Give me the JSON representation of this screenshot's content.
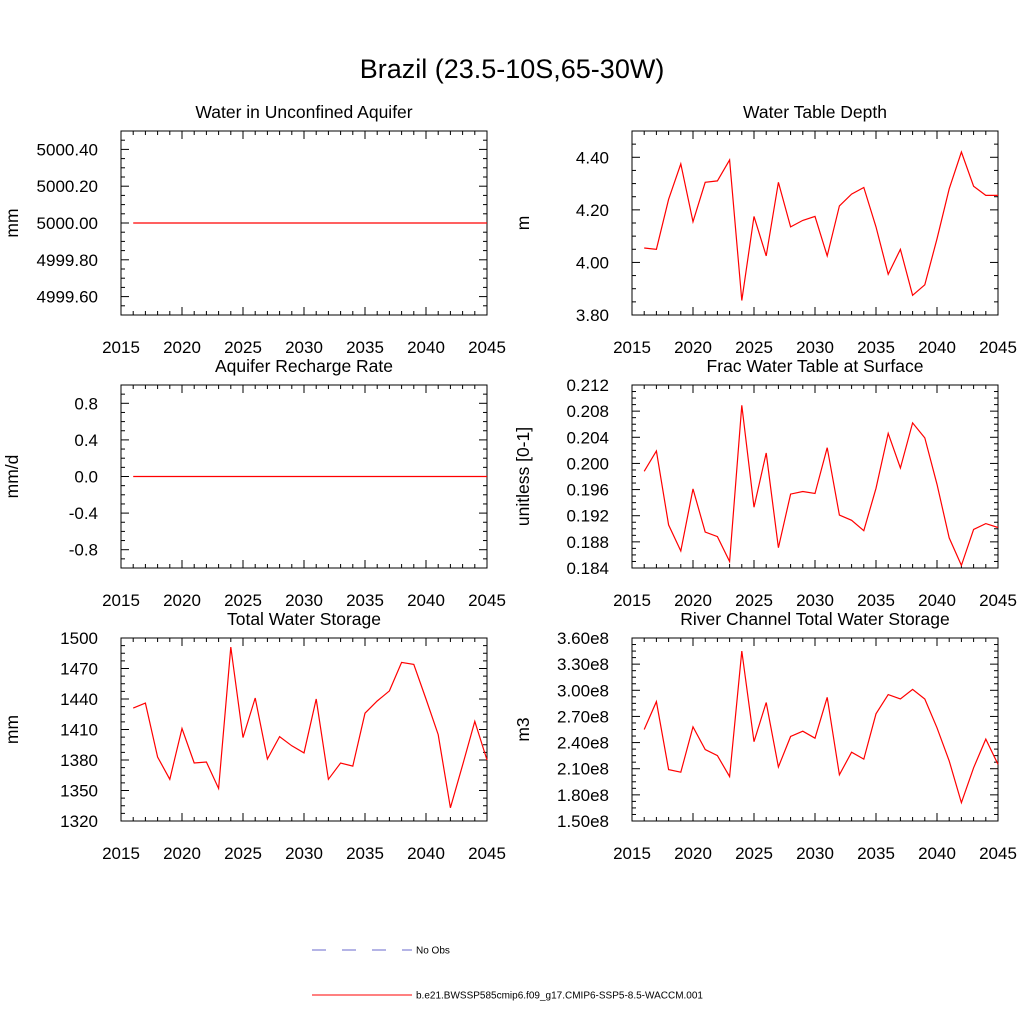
{
  "title": "Brazil (23.5-10S,65-30W)",
  "colors": {
    "model_line": "#ff0000",
    "obs_line": "#6a6acd",
    "axis": "#000000"
  },
  "legend": {
    "items": [
      {
        "label": "No Obs",
        "style": "dashed",
        "color": "#6a6acd"
      },
      {
        "label": "b.e21.BWSSP585cmip6.f09_g17.CMIP6-SSP5-8.5-WACCM.001",
        "style": "solid",
        "color": "#ff0000"
      }
    ]
  },
  "chart_data": [
    {
      "type": "line",
      "title": "Water in Unconfined Aquifer",
      "ylabel": "mm",
      "xlim": [
        2015,
        2045
      ],
      "ylim": [
        4999.5,
        5000.5
      ],
      "xticks": [
        2015,
        2020,
        2025,
        2030,
        2035,
        2040,
        2045
      ],
      "yticks": [
        4999.6,
        4999.8,
        5000.0,
        5000.2,
        5000.4
      ],
      "ytick_labels": [
        "4999.60",
        "4999.80",
        "5000.00",
        "5000.20",
        "5000.40"
      ],
      "x": [
        2016,
        2017,
        2018,
        2019,
        2020,
        2021,
        2022,
        2023,
        2024,
        2025,
        2026,
        2027,
        2028,
        2029,
        2030,
        2031,
        2032,
        2033,
        2034,
        2035,
        2036,
        2037,
        2038,
        2039,
        2040,
        2041,
        2042,
        2043,
        2044,
        2045
      ],
      "series": [
        {
          "values": [
            5000,
            5000,
            5000,
            5000,
            5000,
            5000,
            5000,
            5000,
            5000,
            5000,
            5000,
            5000,
            5000,
            5000,
            5000,
            5000,
            5000,
            5000,
            5000,
            5000,
            5000,
            5000,
            5000,
            5000,
            5000,
            5000,
            5000,
            5000,
            5000,
            5000
          ]
        }
      ]
    },
    {
      "type": "line",
      "title": "Water Table Depth",
      "ylabel": "m",
      "xlim": [
        2015,
        2045
      ],
      "ylim": [
        3.8,
        4.5
      ],
      "xticks": [
        2015,
        2020,
        2025,
        2030,
        2035,
        2040,
        2045
      ],
      "yticks": [
        3.8,
        4.0,
        4.2,
        4.4
      ],
      "ytick_labels": [
        "3.80",
        "4.00",
        "4.20",
        "4.40"
      ],
      "x": [
        2016,
        2017,
        2018,
        2019,
        2020,
        2021,
        2022,
        2023,
        2024,
        2025,
        2026,
        2027,
        2028,
        2029,
        2030,
        2031,
        2032,
        2033,
        2034,
        2035,
        2036,
        2037,
        2038,
        2039,
        2040,
        2041,
        2042,
        2043,
        2044,
        2045
      ],
      "series": [
        {
          "values": [
            4.055,
            4.05,
            4.24,
            4.375,
            4.155,
            4.305,
            4.31,
            4.39,
            3.855,
            4.175,
            4.025,
            4.305,
            4.135,
            4.16,
            4.175,
            4.025,
            4.215,
            4.26,
            4.285,
            4.135,
            3.955,
            4.05,
            3.875,
            3.915,
            4.09,
            4.28,
            4.42,
            4.29,
            4.255,
            4.255
          ]
        }
      ]
    },
    {
      "type": "line",
      "title": "Aquifer Recharge Rate",
      "ylabel": "mm/d",
      "xlim": [
        2015,
        2045
      ],
      "ylim": [
        -1.0,
        1.0
      ],
      "xticks": [
        2015,
        2020,
        2025,
        2030,
        2035,
        2040,
        2045
      ],
      "yticks": [
        -0.8,
        -0.4,
        0.0,
        0.4,
        0.8
      ],
      "ytick_labels": [
        "-0.8",
        "-0.4",
        "0.0",
        "0.4",
        "0.8"
      ],
      "x": [
        2016,
        2017,
        2018,
        2019,
        2020,
        2021,
        2022,
        2023,
        2024,
        2025,
        2026,
        2027,
        2028,
        2029,
        2030,
        2031,
        2032,
        2033,
        2034,
        2035,
        2036,
        2037,
        2038,
        2039,
        2040,
        2041,
        2042,
        2043,
        2044,
        2045
      ],
      "series": [
        {
          "values": [
            0,
            0,
            0,
            0,
            0,
            0,
            0,
            0,
            0,
            0,
            0,
            0,
            0,
            0,
            0,
            0,
            0,
            0,
            0,
            0,
            0,
            0,
            0,
            0,
            0,
            0,
            0,
            0,
            0,
            0
          ]
        }
      ]
    },
    {
      "type": "line",
      "title": "Frac Water Table at Surface",
      "ylabel": "unitless [0-1]",
      "xlim": [
        2015,
        2045
      ],
      "ylim": [
        0.184,
        0.212
      ],
      "xticks": [
        2015,
        2020,
        2025,
        2030,
        2035,
        2040,
        2045
      ],
      "yticks": [
        0.184,
        0.188,
        0.192,
        0.196,
        0.2,
        0.204,
        0.208,
        0.212
      ],
      "ytick_labels": [
        "0.184",
        "0.188",
        "0.192",
        "0.196",
        "0.200",
        "0.204",
        "0.208",
        "0.212"
      ],
      "x": [
        2016,
        2017,
        2018,
        2019,
        2020,
        2021,
        2022,
        2023,
        2024,
        2025,
        2026,
        2027,
        2028,
        2029,
        2030,
        2031,
        2032,
        2033,
        2034,
        2035,
        2036,
        2037,
        2038,
        2039,
        2040,
        2041,
        2042,
        2043,
        2044,
        2045
      ],
      "series": [
        {
          "values": [
            0.1988,
            0.2019,
            0.1906,
            0.1866,
            0.1961,
            0.1895,
            0.1888,
            0.185,
            0.2089,
            0.1933,
            0.2016,
            0.1871,
            0.1953,
            0.1957,
            0.1954,
            0.2024,
            0.1921,
            0.1913,
            0.1897,
            0.1962,
            0.2046,
            0.1993,
            0.2062,
            0.2039,
            0.1968,
            0.1886,
            0.1844,
            0.1899,
            0.1908,
            0.1902
          ]
        }
      ]
    },
    {
      "type": "line",
      "title": "Total Water Storage",
      "ylabel": "mm",
      "xlim": [
        2015,
        2045
      ],
      "ylim": [
        1320,
        1500
      ],
      "xticks": [
        2015,
        2020,
        2025,
        2030,
        2035,
        2040,
        2045
      ],
      "yticks": [
        1320,
        1350,
        1380,
        1410,
        1440,
        1470,
        1500
      ],
      "ytick_labels": [
        "1320",
        "1350",
        "1380",
        "1410",
        "1440",
        "1470",
        "1500"
      ],
      "x": [
        2016,
        2017,
        2018,
        2019,
        2020,
        2021,
        2022,
        2023,
        2024,
        2025,
        2026,
        2027,
        2028,
        2029,
        2030,
        2031,
        2032,
        2033,
        2034,
        2035,
        2036,
        2037,
        2038,
        2039,
        2040,
        2041,
        2042,
        2043,
        2044,
        2045
      ],
      "series": [
        {
          "values": [
            1431,
            1436,
            1383,
            1361,
            1411,
            1377,
            1378,
            1352,
            1491,
            1402,
            1441,
            1381,
            1403,
            1394,
            1387,
            1440,
            1361,
            1377,
            1374,
            1426,
            1438,
            1448,
            1476,
            1474,
            1440,
            1405,
            1333,
            1375,
            1418,
            1380
          ]
        }
      ]
    },
    {
      "type": "line",
      "title": "River Channel Total Water Storage",
      "ylabel": "m3",
      "xlim": [
        2015,
        2045
      ],
      "ylim": [
        150000000,
        360000000
      ],
      "xticks": [
        2015,
        2020,
        2025,
        2030,
        2035,
        2040,
        2045
      ],
      "yticks": [
        150000000,
        180000000,
        210000000,
        240000000,
        270000000,
        300000000,
        330000000,
        360000000
      ],
      "ytick_labels": [
        "1.50e8",
        "1.80e8",
        "2.10e8",
        "2.40e8",
        "2.70e8",
        "3.00e8",
        "3.30e8",
        "3.60e8"
      ],
      "x": [
        2016,
        2017,
        2018,
        2019,
        2020,
        2021,
        2022,
        2023,
        2024,
        2025,
        2026,
        2027,
        2028,
        2029,
        2030,
        2031,
        2032,
        2033,
        2034,
        2035,
        2036,
        2037,
        2038,
        2039,
        2040,
        2041,
        2042,
        2043,
        2044,
        2045
      ],
      "series": [
        {
          "values": [
            255000000,
            287000000,
            209000000,
            206000000,
            258000000,
            232000000,
            225000000,
            201000000,
            345000000,
            241000000,
            286000000,
            212000000,
            247000000,
            253000000,
            245000000,
            292000000,
            203000000,
            229000000,
            221000000,
            273000000,
            295000000,
            290000000,
            301000000,
            290000000,
            257000000,
            219000000,
            171000000,
            211000000,
            244000000,
            215000000
          ]
        }
      ]
    }
  ]
}
